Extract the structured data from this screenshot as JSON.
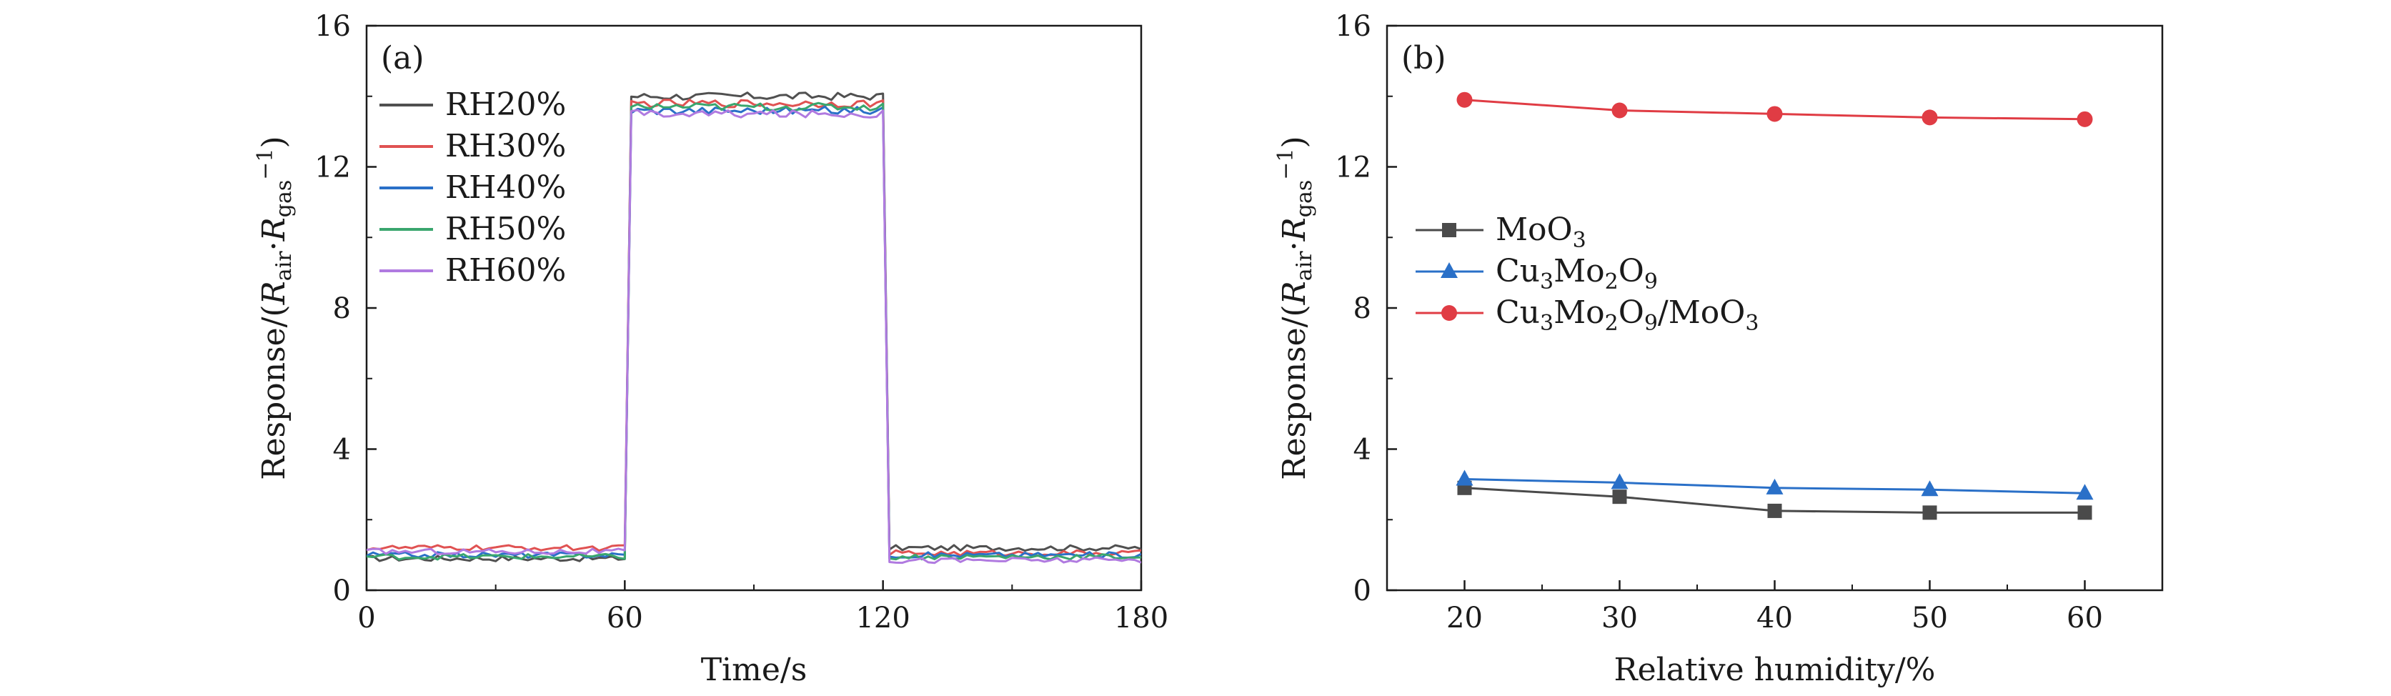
{
  "chart_data": [
    {
      "panel_label": "(a)",
      "type": "line",
      "xlabel": "Time/s",
      "ylabel": "Response/(R_air·R_gas^-1)",
      "ylabel_parts": {
        "prefix": "Response/(",
        "r1": "R",
        "sub1": "air",
        "dot": "·",
        "r2": "R",
        "sub2": "gas",
        "sup": "−1",
        "close": ")"
      },
      "xlim": [
        0,
        180
      ],
      "ylim": [
        0,
        16
      ],
      "xticks": [
        0,
        60,
        120,
        180
      ],
      "yticks": [
        0,
        4,
        8,
        12,
        16
      ],
      "legend_position": "top-left",
      "grid": false,
      "pulse": {
        "on": 61,
        "off": 121
      },
      "series": [
        {
          "name": "RH20%",
          "color": "#505050",
          "baseline_before": 0.9,
          "plateau": 14.0,
          "baseline_after": 1.2
        },
        {
          "name": "RH30%",
          "color": "#e05252",
          "baseline_before": 1.2,
          "plateau": 13.8,
          "baseline_after": 1.05
        },
        {
          "name": "RH40%",
          "color": "#2a70c8",
          "baseline_before": 1.0,
          "plateau": 13.6,
          "baseline_after": 1.0
        },
        {
          "name": "RH50%",
          "color": "#3aa66e",
          "baseline_before": 0.95,
          "plateau": 13.7,
          "baseline_after": 0.95
        },
        {
          "name": "RH60%",
          "color": "#b07ae0",
          "baseline_before": 1.1,
          "plateau": 13.5,
          "baseline_after": 0.85
        }
      ]
    },
    {
      "panel_label": "(b)",
      "type": "line",
      "xlabel": "Relative humidity/%",
      "ylabel": "Response/(R_air·R_gas^-1)",
      "ylabel_parts": {
        "prefix": "Response/(",
        "r1": "R",
        "sub1": "air",
        "dot": "·",
        "r2": "R",
        "sub2": "gas",
        "sup": "−1",
        "close": ")"
      },
      "xlim": [
        15,
        65
      ],
      "ylim": [
        0,
        16
      ],
      "xticks": [
        20,
        30,
        40,
        50,
        60
      ],
      "yticks": [
        0,
        4,
        8,
        12,
        16
      ],
      "legend_position": "center-left",
      "grid": false,
      "x": [
        20,
        30,
        40,
        50,
        60
      ],
      "series": [
        {
          "name": "MoO3",
          "name_parts": [
            [
              "MoO",
              ""
            ],
            [
              "3",
              "sub"
            ]
          ],
          "color": "#4a4a4a",
          "marker": "square",
          "values": [
            2.9,
            2.65,
            2.25,
            2.2,
            2.2
          ]
        },
        {
          "name": "Cu3Mo2O9",
          "name_parts": [
            [
              "Cu",
              ""
            ],
            [
              "3",
              "sub"
            ],
            [
              "Mo",
              ""
            ],
            [
              "2",
              "sub"
            ],
            [
              "O",
              ""
            ],
            [
              "9",
              "sub"
            ]
          ],
          "color": "#2a70c8",
          "marker": "triangle",
          "values": [
            3.15,
            3.05,
            2.9,
            2.85,
            2.75
          ]
        },
        {
          "name": "Cu3Mo2O9/MoO3",
          "name_parts": [
            [
              "Cu",
              ""
            ],
            [
              "3",
              "sub"
            ],
            [
              "Mo",
              ""
            ],
            [
              "2",
              "sub"
            ],
            [
              "O",
              ""
            ],
            [
              "9",
              "sub"
            ],
            [
              "/MoO",
              ""
            ],
            [
              "3",
              "sub"
            ]
          ],
          "color": "#e03c44",
          "marker": "circle",
          "values": [
            13.9,
            13.6,
            13.5,
            13.4,
            13.35
          ]
        }
      ]
    }
  ]
}
